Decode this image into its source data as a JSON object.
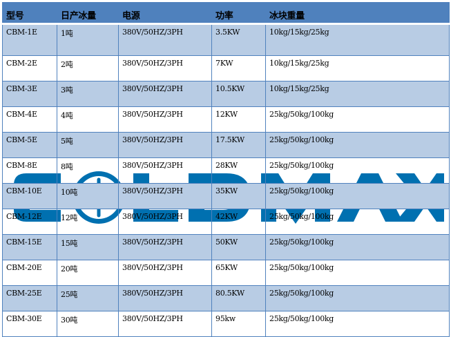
{
  "watermark": {
    "text": "COLDMAX",
    "color": "#0070B0"
  },
  "colors": {
    "header": "#4F81BD",
    "stripe": "#B8CCE4"
  },
  "headers": [
    "型号",
    "日产冰量",
    "电源",
    "功率",
    "冰块重量"
  ],
  "rows": [
    [
      "CBM-1E",
      "1吨",
      "380V/50HZ/3PH",
      "3.5KW",
      "10kg/15kg/25kg"
    ],
    [
      "CBM-2E",
      "2吨",
      "380V/50HZ/3PH",
      "7KW",
      "10kg/15kg/25kg"
    ],
    [
      "CBM-3E",
      "3吨",
      "380V/50HZ/3PH",
      "10.5KW",
      "10kg/15kg/25kg"
    ],
    [
      "CBM-4E",
      "4吨",
      "380V/50HZ/3PH",
      "12KW",
      "25kg/50kg/100kg"
    ],
    [
      "CBM-5E",
      "5吨",
      "380V/50HZ/3PH",
      "17.5KW",
      "25kg/50kg/100kg"
    ],
    [
      "CBM-8E",
      "8吨",
      "380V/50HZ/3PH",
      "28KW",
      "25kg/50kg/100kg"
    ],
    [
      "CBM-10E",
      "10吨",
      "380V/50HZ/3PH",
      "35KW",
      "25kg/50kg/100kg"
    ],
    [
      "CBM-12E",
      "12吨",
      "380V/50HZ/3PH",
      "42KW",
      "25kg/50kg/100kg"
    ],
    [
      "CBM-15E",
      "15吨",
      "380V/50HZ/3PH",
      "50KW",
      "25kg/50kg/100kg"
    ],
    [
      "CBM-20E",
      "20吨",
      "380V/50HZ/3PH",
      "65KW",
      "25kg/50kg/100kg"
    ],
    [
      "CBM-25E",
      "25吨",
      "380V/50HZ/3PH",
      "80.5KW",
      "25kg/50kg/100kg"
    ],
    [
      "CBM-30E",
      "30吨",
      "380V/50HZ/3PH",
      "95kw",
      "25kg/50kg/100kg"
    ]
  ]
}
